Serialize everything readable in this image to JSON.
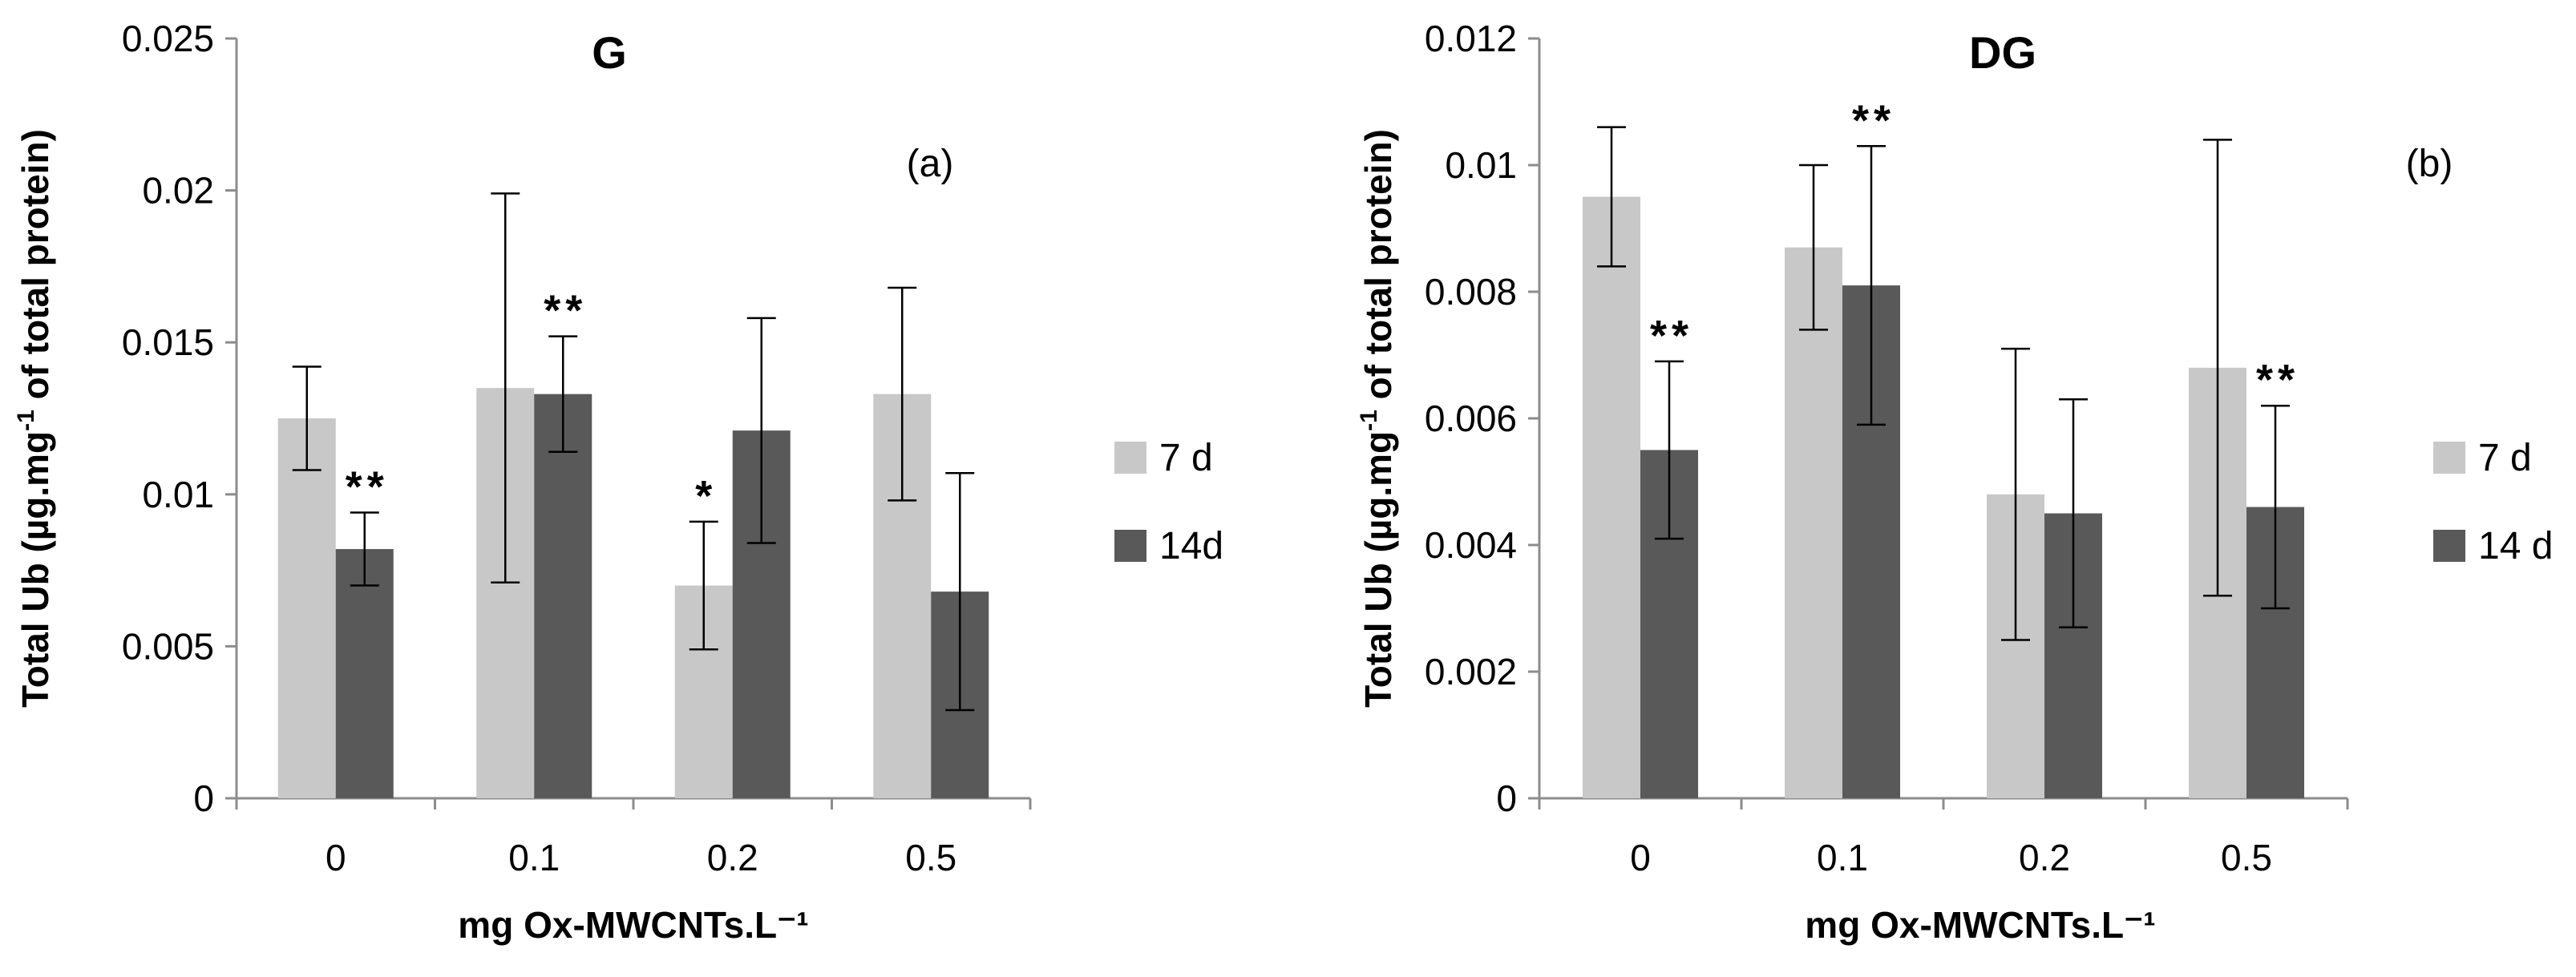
{
  "chart_data": [
    {
      "type": "bar",
      "title": "G",
      "panel_label": "(a)",
      "xlabel": "mg Ox-MWCNTs.L⁻¹",
      "ylabel_main": "Total Ub (µg.mg",
      "ylabel_sup": "-1",
      "ylabel_tail": " of total protein)",
      "ylim": [
        0,
        0.025
      ],
      "yticks": [
        "0",
        "0.005",
        "0.01",
        "0.015",
        "0.02",
        "0.025"
      ],
      "categories": [
        "0",
        "0.1",
        "0.2",
        "0.5"
      ],
      "series": [
        {
          "name": "7 d",
          "color": "#c8c8c8",
          "values": [
            0.0125,
            0.0135,
            0.007,
            0.0133
          ],
          "errors": [
            0.0017,
            0.0064,
            0.0021,
            0.0035
          ],
          "significance": [
            "",
            "",
            "*",
            ""
          ]
        },
        {
          "name": "14d",
          "color": "#595959",
          "values": [
            0.0082,
            0.0133,
            0.0121,
            0.0068
          ],
          "errors": [
            0.0012,
            0.0019,
            0.0037,
            0.0039
          ],
          "significance": [
            "**",
            "**",
            "",
            ""
          ]
        }
      ],
      "legend_position": "right"
    },
    {
      "type": "bar",
      "title": "DG",
      "panel_label": "(b)",
      "xlabel": "mg Ox-MWCNTs.L⁻¹",
      "ylabel_main": "Total Ub (µg.mg",
      "ylabel_sup": "-1",
      "ylabel_tail": " of total protein)",
      "ylim": [
        0,
        0.012
      ],
      "yticks": [
        "0",
        "0.002",
        "0.004",
        "0.006",
        "0.008",
        "0.01",
        "0.012"
      ],
      "categories": [
        "0",
        "0.1",
        "0.2",
        "0.5"
      ],
      "series": [
        {
          "name": "7 d",
          "color": "#c8c8c8",
          "values": [
            0.0095,
            0.0087,
            0.0048,
            0.0068
          ],
          "errors": [
            0.0011,
            0.0013,
            0.0023,
            0.0036
          ],
          "significance": [
            "",
            "",
            "",
            ""
          ]
        },
        {
          "name": "14 d",
          "color": "#595959",
          "values": [
            0.0055,
            0.0081,
            0.0045,
            0.0046
          ],
          "errors": [
            0.0014,
            0.0022,
            0.0018,
            0.0016
          ],
          "significance": [
            "**",
            "**",
            "",
            "**"
          ]
        }
      ],
      "legend_position": "right"
    }
  ]
}
